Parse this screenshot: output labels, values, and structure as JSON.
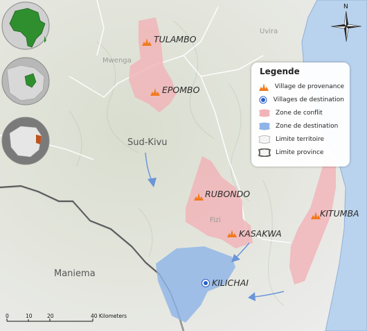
{
  "map": {
    "compass": "N",
    "regions": {
      "sud_kivu": "Sud-Kivu",
      "maniema": "Maniema",
      "mwenga": "Mwenga",
      "uvira": "Uvira",
      "fizi": "Fizi"
    },
    "villages": [
      {
        "name": "TULAMBO",
        "type": "provenance"
      },
      {
        "name": "EPOMBO",
        "type": "provenance"
      },
      {
        "name": "RUBONDO",
        "type": "provenance"
      },
      {
        "name": "KASAKWA",
        "type": "provenance"
      },
      {
        "name": "KITUMBA",
        "type": "provenance"
      },
      {
        "name": "KILICHAI",
        "type": "destination"
      }
    ],
    "colors": {
      "conflict_zone": "#f2b3b8",
      "destination_zone": "#8fb4e8",
      "lake": "#b9d3ee",
      "village_marker": "#f07a1e",
      "destination_marker": "#2a5fc7",
      "africa_fill": "#2f8f2f"
    }
  },
  "legend": {
    "title": "Legende",
    "items": [
      "Village de provenance",
      "Villages de destination",
      "Zone de conflit",
      "Zone de destination",
      "Limite territoire",
      "Limite province"
    ]
  },
  "scale": {
    "ticks": [
      "0",
      "10",
      "20",
      "40 Kilometers"
    ]
  }
}
